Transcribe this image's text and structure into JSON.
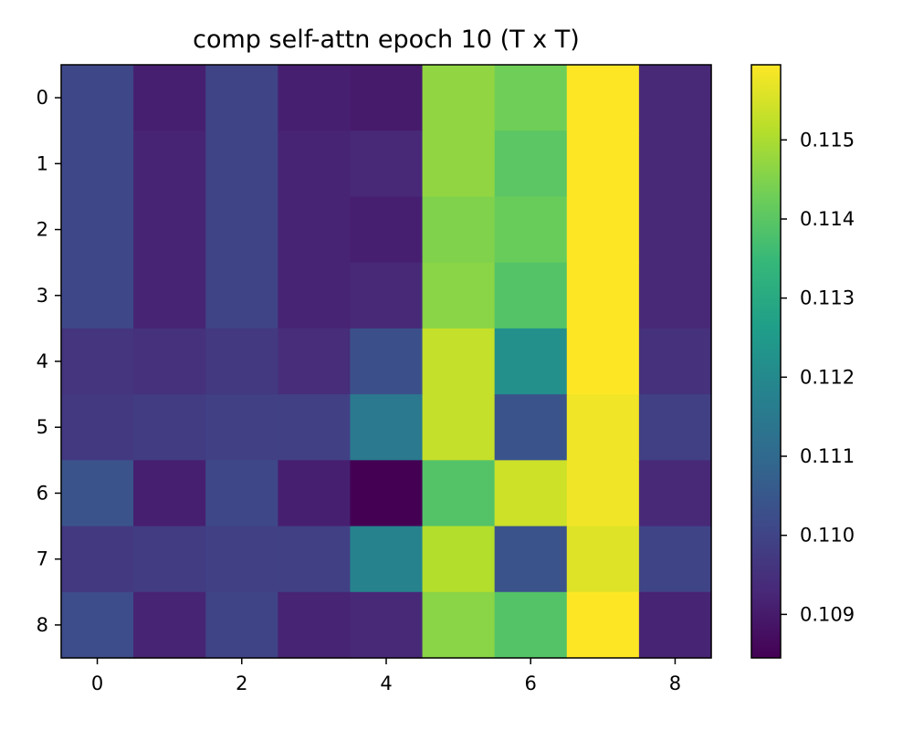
{
  "chart_data": {
    "type": "heatmap",
    "title": "comp self-attn epoch 10 (T x T)",
    "xlabel": "",
    "ylabel": "",
    "rows": [
      0,
      1,
      2,
      3,
      4,
      5,
      6,
      7,
      8
    ],
    "cols": [
      0,
      1,
      2,
      3,
      4,
      5,
      6,
      7,
      8
    ],
    "x_ticks": [
      0,
      2,
      4,
      6,
      8
    ],
    "y_ticks": [
      0,
      1,
      2,
      3,
      4,
      5,
      6,
      7,
      8
    ],
    "colormap": "viridis",
    "vmin": 0.10845,
    "vmax": 0.11595,
    "colorbar_ticks": [
      "0.109",
      "0.110",
      "0.111",
      "0.112",
      "0.113",
      "0.114",
      "0.115"
    ],
    "values": [
      [
        0.1101,
        0.1091,
        0.11,
        0.1091,
        0.109,
        0.1147,
        0.1143,
        0.116,
        0.1093
      ],
      [
        0.1101,
        0.1092,
        0.11,
        0.1092,
        0.1093,
        0.1147,
        0.114,
        0.116,
        0.1093
      ],
      [
        0.1101,
        0.1092,
        0.11,
        0.1092,
        0.1091,
        0.1145,
        0.1142,
        0.116,
        0.1093
      ],
      [
        0.1101,
        0.1092,
        0.11,
        0.1092,
        0.1093,
        0.1146,
        0.1139,
        0.116,
        0.1093
      ],
      [
        0.1096,
        0.1095,
        0.1097,
        0.1094,
        0.1103,
        0.1153,
        0.1122,
        0.116,
        0.1095
      ],
      [
        0.1097,
        0.1098,
        0.1099,
        0.1099,
        0.1115,
        0.1153,
        0.1104,
        0.1158,
        0.1099
      ],
      [
        0.1104,
        0.1091,
        0.1101,
        0.1091,
        0.10845,
        0.1139,
        0.1154,
        0.1158,
        0.1093
      ],
      [
        0.1097,
        0.1098,
        0.1099,
        0.1099,
        0.1118,
        0.1151,
        0.1104,
        0.1156,
        0.11
      ],
      [
        0.1102,
        0.1092,
        0.11,
        0.1092,
        0.1093,
        0.1146,
        0.1139,
        0.116,
        0.1092
      ]
    ]
  }
}
